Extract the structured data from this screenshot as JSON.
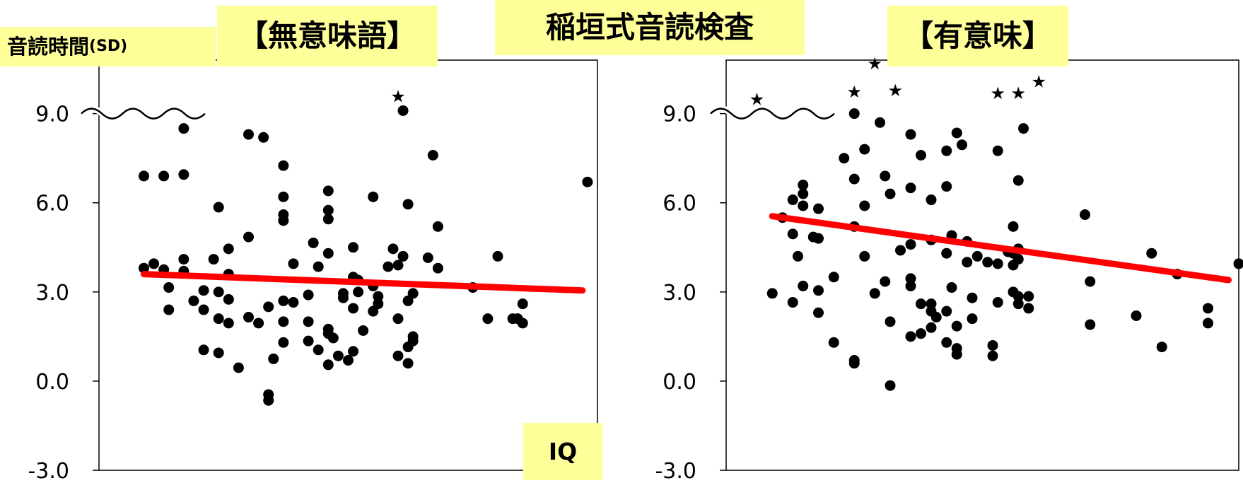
{
  "header": {
    "main_title": "稲垣式音読検査",
    "y_axis_title": "音読時間",
    "y_axis_unit": "(SD)",
    "x_axis_title": "IQ"
  },
  "colors": {
    "label_background": "#ffff99",
    "trend_line": "#ff0000",
    "points": "#000000"
  },
  "chart_data": [
    {
      "type": "scatter",
      "title": "【無意味語】",
      "xlabel": "IQ",
      "ylabel": "音読時間(SD)",
      "ylim": [
        -3.0,
        10.8
      ],
      "xlim": [
        0,
        100
      ],
      "yticks": [
        "9.0",
        "6.0",
        "3.0",
        "0.0",
        "-3.0"
      ],
      "ytick_values": [
        9,
        6,
        3,
        0,
        -3
      ],
      "axis_break_at": 9.0,
      "grid": false,
      "trend_line": {
        "x": [
          9,
          97
        ],
        "y": [
          3.6,
          3.05
        ]
      },
      "points": [
        {
          "x": 9,
          "y": 6.9
        },
        {
          "x": 13,
          "y": 6.9
        },
        {
          "x": 17,
          "y": 6.95
        },
        {
          "x": 17,
          "y": 8.5
        },
        {
          "x": 24,
          "y": 5.85
        },
        {
          "x": 30,
          "y": 8.3
        },
        {
          "x": 33,
          "y": 8.2
        },
        {
          "x": 37,
          "y": 7.25
        },
        {
          "x": 37,
          "y": 6.2
        },
        {
          "x": 37,
          "y": 5.6
        },
        {
          "x": 37,
          "y": 5.4
        },
        {
          "x": 46,
          "y": 6.4
        },
        {
          "x": 46,
          "y": 5.75
        },
        {
          "x": 46,
          "y": 5.45
        },
        {
          "x": 55,
          "y": 6.2
        },
        {
          "x": 61,
          "y": 9.1
        },
        {
          "x": 67,
          "y": 7.6
        },
        {
          "x": 59,
          "y": 4.45
        },
        {
          "x": 61,
          "y": 4.2
        },
        {
          "x": 66,
          "y": 4.15
        },
        {
          "x": 75,
          "y": 3.15
        },
        {
          "x": 78,
          "y": 2.1
        },
        {
          "x": 80,
          "y": 4.2
        },
        {
          "x": 85,
          "y": 2.6
        },
        {
          "x": 85,
          "y": 1.95
        },
        {
          "x": 98,
          "y": 6.7
        },
        {
          "x": 68,
          "y": 5.2
        },
        {
          "x": 68,
          "y": 3.8
        },
        {
          "x": 62,
          "y": 5.95
        },
        {
          "x": 9,
          "y": 3.8
        },
        {
          "x": 11,
          "y": 3.95
        },
        {
          "x": 13,
          "y": 3.75
        },
        {
          "x": 14,
          "y": 3.15
        },
        {
          "x": 14,
          "y": 2.4
        },
        {
          "x": 17,
          "y": 4.1
        },
        {
          "x": 17,
          "y": 3.7
        },
        {
          "x": 19,
          "y": 2.7
        },
        {
          "x": 21,
          "y": 3.05
        },
        {
          "x": 21,
          "y": 2.4
        },
        {
          "x": 21,
          "y": 1.05
        },
        {
          "x": 23,
          "y": 4.1
        },
        {
          "x": 24,
          "y": 3.0
        },
        {
          "x": 24,
          "y": 2.1
        },
        {
          "x": 24,
          "y": 0.95
        },
        {
          "x": 26,
          "y": 4.45
        },
        {
          "x": 26,
          "y": 3.6
        },
        {
          "x": 26,
          "y": 2.75
        },
        {
          "x": 26,
          "y": 1.95
        },
        {
          "x": 28,
          "y": 0.45
        },
        {
          "x": 30,
          "y": 4.85
        },
        {
          "x": 30,
          "y": 2.15
        },
        {
          "x": 32,
          "y": 1.95
        },
        {
          "x": 34,
          "y": 2.5
        },
        {
          "x": 34,
          "y": -0.45
        },
        {
          "x": 34,
          "y": -0.65
        },
        {
          "x": 35,
          "y": 0.75
        },
        {
          "x": 37,
          "y": 2.7
        },
        {
          "x": 37,
          "y": 2.0
        },
        {
          "x": 37,
          "y": 1.3
        },
        {
          "x": 39,
          "y": 3.95
        },
        {
          "x": 39,
          "y": 2.65
        },
        {
          "x": 42,
          "y": 2.9
        },
        {
          "x": 42,
          "y": 2.0
        },
        {
          "x": 42,
          "y": 1.35
        },
        {
          "x": 43,
          "y": 4.65
        },
        {
          "x": 44,
          "y": 3.85
        },
        {
          "x": 44,
          "y": 1.05
        },
        {
          "x": 46,
          "y": 4.3
        },
        {
          "x": 46,
          "y": 1.75
        },
        {
          "x": 46,
          "y": 1.6
        },
        {
          "x": 46,
          "y": 0.55
        },
        {
          "x": 47,
          "y": 1.45
        },
        {
          "x": 48,
          "y": 0.85
        },
        {
          "x": 49,
          "y": 2.8
        },
        {
          "x": 49,
          "y": 2.95
        },
        {
          "x": 50,
          "y": 0.7
        },
        {
          "x": 51,
          "y": 4.5
        },
        {
          "x": 51,
          "y": 3.5
        },
        {
          "x": 51,
          "y": 2.45
        },
        {
          "x": 51,
          "y": 1.0
        },
        {
          "x": 52,
          "y": 3.4
        },
        {
          "x": 52,
          "y": 3.0
        },
        {
          "x": 53,
          "y": 1.7
        },
        {
          "x": 55,
          "y": 3.2
        },
        {
          "x": 55,
          "y": 2.35
        },
        {
          "x": 56,
          "y": 2.85
        },
        {
          "x": 56,
          "y": 2.6
        },
        {
          "x": 58,
          "y": 3.85
        },
        {
          "x": 60,
          "y": 3.9
        },
        {
          "x": 60,
          "y": 2.1
        },
        {
          "x": 60,
          "y": 0.85
        },
        {
          "x": 62,
          "y": 2.7
        },
        {
          "x": 62,
          "y": 1.15
        },
        {
          "x": 62,
          "y": 0.6
        },
        {
          "x": 63,
          "y": 2.95
        },
        {
          "x": 63,
          "y": 1.5
        },
        {
          "x": 63,
          "y": 1.35
        },
        {
          "x": 83,
          "y": 2.1
        },
        {
          "x": 84,
          "y": 2.1
        }
      ],
      "stars": [
        {
          "x": 60,
          "y": 9.6
        }
      ]
    },
    {
      "type": "scatter",
      "title": "【有意味】",
      "xlabel": "IQ",
      "ylabel": "音読時間(SD)",
      "ylim": [
        -3.0,
        10.8
      ],
      "xlim": [
        0,
        100
      ],
      "yticks": [
        "9.0",
        "6.0",
        "3.0",
        "0.0",
        "-3.0"
      ],
      "ytick_values": [
        9,
        6,
        3,
        0,
        -3
      ],
      "axis_break_at": 9.0,
      "grid": false,
      "trend_line": {
        "x": [
          9,
          98
        ],
        "y": [
          5.55,
          3.4
        ]
      },
      "points": [
        {
          "x": 25,
          "y": 9.0
        },
        {
          "x": 30,
          "y": 8.7
        },
        {
          "x": 25,
          "y": 6.8
        },
        {
          "x": 23,
          "y": 7.5
        },
        {
          "x": 27,
          "y": 7.8
        },
        {
          "x": 31,
          "y": 6.9
        },
        {
          "x": 32,
          "y": 6.3
        },
        {
          "x": 36,
          "y": 8.3
        },
        {
          "x": 38,
          "y": 7.6
        },
        {
          "x": 40,
          "y": 6.1
        },
        {
          "x": 43,
          "y": 7.75
        },
        {
          "x": 45,
          "y": 8.35
        },
        {
          "x": 46,
          "y": 7.95
        },
        {
          "x": 53,
          "y": 7.75
        },
        {
          "x": 57,
          "y": 6.75
        },
        {
          "x": 58,
          "y": 8.5
        },
        {
          "x": 43,
          "y": 6.55
        },
        {
          "x": 36,
          "y": 6.5
        },
        {
          "x": 70,
          "y": 5.6
        },
        {
          "x": 15,
          "y": 6.6
        },
        {
          "x": 15,
          "y": 6.3
        },
        {
          "x": 13,
          "y": 6.1
        },
        {
          "x": 11,
          "y": 5.5
        },
        {
          "x": 9,
          "y": 2.95
        },
        {
          "x": 13,
          "y": 4.95
        },
        {
          "x": 13,
          "y": 2.65
        },
        {
          "x": 14,
          "y": 4.2
        },
        {
          "x": 15,
          "y": 5.9
        },
        {
          "x": 15,
          "y": 3.2
        },
        {
          "x": 17,
          "y": 4.85
        },
        {
          "x": 18,
          "y": 5.8
        },
        {
          "x": 18,
          "y": 4.8
        },
        {
          "x": 18,
          "y": 3.05
        },
        {
          "x": 18,
          "y": 2.3
        },
        {
          "x": 21,
          "y": 3.5
        },
        {
          "x": 25,
          "y": 5.2
        },
        {
          "x": 25,
          "y": 0.7
        },
        {
          "x": 25,
          "y": 0.6
        },
        {
          "x": 27,
          "y": 5.9
        },
        {
          "x": 27,
          "y": 4.2
        },
        {
          "x": 29,
          "y": 2.95
        },
        {
          "x": 31,
          "y": 3.35
        },
        {
          "x": 32,
          "y": 2.0
        },
        {
          "x": 32,
          "y": -0.15
        },
        {
          "x": 34,
          "y": 4.4
        },
        {
          "x": 36,
          "y": 4.6
        },
        {
          "x": 36,
          "y": 3.45
        },
        {
          "x": 36,
          "y": 3.2
        },
        {
          "x": 36,
          "y": 1.5
        },
        {
          "x": 38,
          "y": 2.6
        },
        {
          "x": 38,
          "y": 1.6
        },
        {
          "x": 40,
          "y": 4.75
        },
        {
          "x": 40,
          "y": 2.6
        },
        {
          "x": 40,
          "y": 2.35
        },
        {
          "x": 40,
          "y": 1.8
        },
        {
          "x": 41,
          "y": 2.15
        },
        {
          "x": 43,
          "y": 4.3
        },
        {
          "x": 43,
          "y": 2.35
        },
        {
          "x": 43,
          "y": 1.3
        },
        {
          "x": 44,
          "y": 3.15
        },
        {
          "x": 44,
          "y": 4.9
        },
        {
          "x": 45,
          "y": 1.1
        },
        {
          "x": 45,
          "y": 0.9
        },
        {
          "x": 45,
          "y": 1.85
        },
        {
          "x": 47,
          "y": 4.7
        },
        {
          "x": 47,
          "y": 4.0
        },
        {
          "x": 48,
          "y": 2.8
        },
        {
          "x": 48,
          "y": 2.1
        },
        {
          "x": 49,
          "y": 4.2
        },
        {
          "x": 51,
          "y": 4.0
        },
        {
          "x": 52,
          "y": 1.2
        },
        {
          "x": 52,
          "y": 0.85
        },
        {
          "x": 53,
          "y": 3.95
        },
        {
          "x": 53,
          "y": 2.65
        },
        {
          "x": 55,
          "y": 4.35
        },
        {
          "x": 56,
          "y": 5.2
        },
        {
          "x": 56,
          "y": 4.3
        },
        {
          "x": 56,
          "y": 3.9
        },
        {
          "x": 56,
          "y": 3.0
        },
        {
          "x": 57,
          "y": 4.45
        },
        {
          "x": 57,
          "y": 4.1
        },
        {
          "x": 57,
          "y": 2.85
        },
        {
          "x": 57,
          "y": 2.6
        },
        {
          "x": 59,
          "y": 2.85
        },
        {
          "x": 59,
          "y": 2.45
        },
        {
          "x": 71,
          "y": 3.35
        },
        {
          "x": 71,
          "y": 1.9
        },
        {
          "x": 80,
          "y": 2.2
        },
        {
          "x": 83,
          "y": 4.3
        },
        {
          "x": 85,
          "y": 1.15
        },
        {
          "x": 88,
          "y": 3.6
        },
        {
          "x": 94,
          "y": 2.45
        },
        {
          "x": 94,
          "y": 1.95
        },
        {
          "x": 100,
          "y": 3.95
        },
        {
          "x": 21,
          "y": 1.3
        }
      ],
      "stars": [
        {
          "x": 6,
          "y": 9.5
        },
        {
          "x": 25,
          "y": 9.75
        },
        {
          "x": 29,
          "y": 10.7
        },
        {
          "x": 33,
          "y": 9.8
        },
        {
          "x": 53,
          "y": 9.7
        },
        {
          "x": 57,
          "y": 9.7
        },
        {
          "x": 61,
          "y": 10.1
        }
      ]
    }
  ]
}
